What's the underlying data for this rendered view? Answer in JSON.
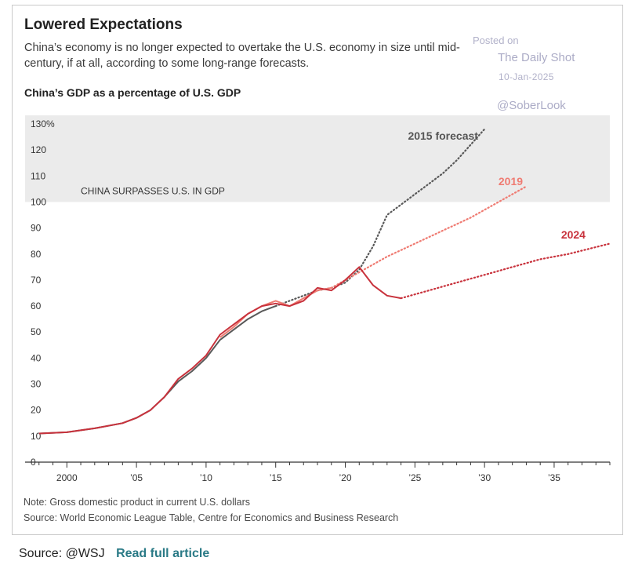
{
  "header": {
    "title": "Lowered Expectations",
    "subtitle": "China’s economy is no longer expected to overtake the U.S. economy in size until mid-century, if at all, according to some long-range forecasts.",
    "chart_title": "China’s GDP as a percentage of U.S. GDP"
  },
  "watermark": {
    "posted": "Posted on",
    "site": "The Daily Shot",
    "date": "10-Jan-2025",
    "handle": "@SoberLook"
  },
  "notes": {
    "note": "Note: Gross domestic product in current U.S. dollars",
    "source": "Source: World Economic League Table, Centre for Economics and Business Research"
  },
  "footer": {
    "source_label": "Source: @WSJ",
    "link_label": "Read full article"
  },
  "colors": {
    "historical": "#c8323c",
    "forecast_2015": "#595959",
    "forecast_2019": "#ef7b72",
    "forecast_2024": "#c8323c",
    "band": "#ebebeb",
    "axis": "#333333"
  },
  "chart_data": {
    "type": "line",
    "title": "China’s GDP as a percentage of U.S. GDP",
    "xlabel": "",
    "ylabel": "",
    "xlim": [
      1997,
      2039
    ],
    "ylim": [
      0,
      130
    ],
    "y_ticks": [
      0,
      10,
      20,
      30,
      40,
      50,
      60,
      70,
      80,
      90,
      100,
      110,
      120,
      130
    ],
    "y_tick_labels": [
      "0",
      "10",
      "20",
      "30",
      "40",
      "50",
      "60",
      "70",
      "80",
      "90",
      "100",
      "110",
      "120",
      "130%"
    ],
    "x_ticks": [
      2000,
      2005,
      2010,
      2015,
      2020,
      2025,
      2030,
      2035
    ],
    "x_tick_labels": [
      "2000",
      "’05",
      "’10",
      "’15",
      "’20",
      "’25",
      "’30",
      "’35"
    ],
    "band": {
      "from": 100,
      "to": 132,
      "label": "CHINA SURPASSES U.S. IN GDP"
    },
    "series": [
      {
        "name": "2015 forecast",
        "style": "mixed",
        "color_key": "forecast_2015",
        "solid": {
          "x": [
            1998,
            2000,
            2002,
            2004,
            2005,
            2006,
            2007,
            2008,
            2009,
            2010,
            2011,
            2012,
            2013,
            2014,
            2015
          ],
          "y": [
            11,
            11.5,
            13,
            15,
            17,
            20,
            25,
            31,
            35,
            40,
            47,
            51,
            55,
            58,
            60
          ]
        },
        "dotted": {
          "x": [
            2015,
            2016,
            2017,
            2018,
            2019,
            2020,
            2021,
            2022,
            2023,
            2024,
            2025,
            2026,
            2027,
            2028,
            2029,
            2030
          ],
          "y": [
            60,
            62,
            64,
            66,
            67,
            69,
            74,
            83,
            95,
            99,
            103,
            107,
            111,
            116,
            122,
            128
          ]
        },
        "label": "2015 forecast"
      },
      {
        "name": "2019",
        "style": "mixed",
        "color_key": "forecast_2019",
        "solid": {
          "x": [
            2011,
            2012,
            2013,
            2014,
            2015,
            2016,
            2017,
            2018,
            2019
          ],
          "y": [
            48,
            52,
            57,
            60,
            62,
            60,
            63,
            66,
            67
          ]
        },
        "dotted": {
          "x": [
            2019,
            2021,
            2023,
            2025,
            2027,
            2029,
            2031,
            2033
          ],
          "y": [
            67,
            73,
            79,
            84,
            89,
            94,
            100,
            106
          ]
        },
        "label": "2019"
      },
      {
        "name": "2024",
        "style": "mixed",
        "color_key": "forecast_2024",
        "solid": {
          "x": [
            1998,
            2000,
            2002,
            2004,
            2005,
            2006,
            2007,
            2008,
            2009,
            2010,
            2011,
            2012,
            2013,
            2014,
            2015,
            2016,
            2017,
            2018,
            2019,
            2020,
            2021,
            2022,
            2023,
            2024
          ],
          "y": [
            11,
            11.5,
            13,
            15,
            17,
            20,
            25,
            32,
            36,
            41,
            49,
            53,
            57,
            60,
            61,
            60,
            62,
            67,
            66,
            70,
            75,
            68,
            64,
            63
          ]
        },
        "dotted": {
          "x": [
            2024,
            2026,
            2028,
            2030,
            2032,
            2034,
            2036,
            2039
          ],
          "y": [
            63,
            66,
            69,
            72,
            75,
            78,
            80,
            84
          ]
        },
        "label": "2024"
      }
    ]
  }
}
